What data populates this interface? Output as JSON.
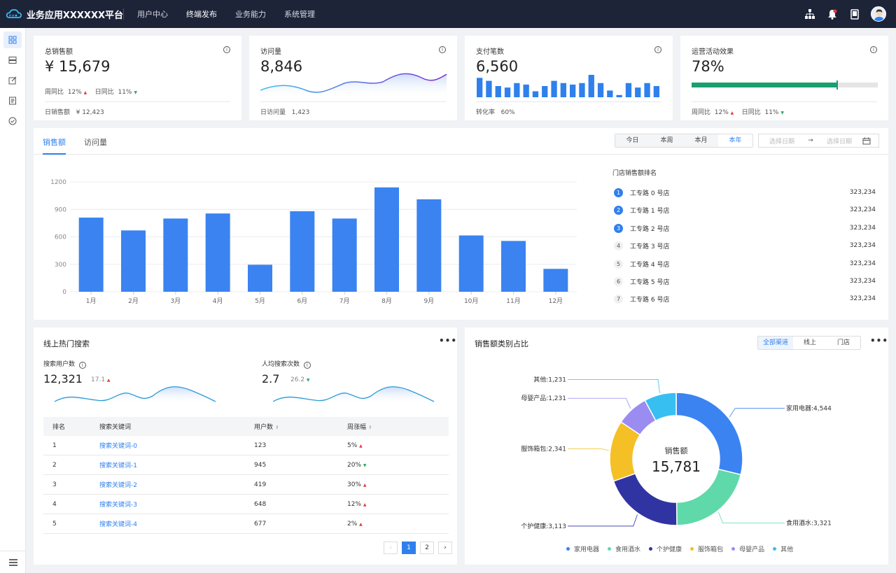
{
  "app": {
    "title": "业务应用XXXXXX平台",
    "nav": [
      "用户中心",
      "终端发布",
      "业务能力",
      "系统管理"
    ],
    "active_nav": 1
  },
  "colors": {
    "accent": "#2f80ed",
    "green": "#1a9f6f",
    "topbar": "#1d2438",
    "up": "#e23b3b",
    "down": "#2aa864"
  },
  "top_icons": [
    "org-chart-icon",
    "bell-icon",
    "tablet-icon",
    "avatar"
  ],
  "sidebar": [
    "dashboard-icon",
    "list-icon",
    "edit-icon",
    "document-icon",
    "check-circle-icon",
    "menu-icon"
  ],
  "kpis": {
    "sales": {
      "title": "总销售额",
      "value": "¥ 15,679",
      "wow_label": "周同比",
      "wow": "12%",
      "dod_label": "日同比",
      "dod": "11%",
      "footer_label": "日销售额",
      "footer_value": "¥ 12,423"
    },
    "visits": {
      "title": "访问量",
      "value": "8,846",
      "footer_label": "日访问量",
      "footer_value": "1,423"
    },
    "payments": {
      "title": "支付笔数",
      "value": "6,560",
      "footer_label": "转化率",
      "footer_value": "60%",
      "bars": [
        26,
        22,
        15,
        13,
        19,
        17,
        8,
        15,
        22,
        19,
        17,
        19,
        30,
        19,
        9,
        3,
        19,
        13,
        19,
        15
      ]
    },
    "campaign": {
      "title": "运营活动效果",
      "value": "78%",
      "progress": 0.78,
      "wow_label": "周同比",
      "wow": "12%",
      "dod_label": "日同比",
      "dod": "11%"
    }
  },
  "sales_section": {
    "tabs": [
      "销售额",
      "访问量"
    ],
    "periods": [
      "今日",
      "本周",
      "本月",
      "本年"
    ],
    "active_period": 3,
    "date_start_placeholder": "选择日期",
    "date_end_placeholder": "选择日期",
    "arrow": "→",
    "rank_title": "门店销售额排名",
    "ranking": [
      {
        "rank": "1",
        "name": "工专路 0 号店",
        "value": "323,234"
      },
      {
        "rank": "2",
        "name": "工专路 1 号店",
        "value": "323,234"
      },
      {
        "rank": "3",
        "name": "工专路 2 号店",
        "value": "323,234"
      },
      {
        "rank": "4",
        "name": "工专路 3 号店",
        "value": "323,234"
      },
      {
        "rank": "5",
        "name": "工专路 4 号店",
        "value": "323,234"
      },
      {
        "rank": "6",
        "name": "工专路 5 号店",
        "value": "323,234"
      },
      {
        "rank": "7",
        "name": "工专路 6 号店",
        "value": "323,234"
      }
    ]
  },
  "chart_data": [
    {
      "type": "bar",
      "categories": [
        "1月",
        "2月",
        "3月",
        "4月",
        "5月",
        "6月",
        "7月",
        "8月",
        "9月",
        "10月",
        "11月",
        "12月"
      ],
      "values": [
        810,
        670,
        800,
        855,
        295,
        880,
        800,
        1140,
        1010,
        615,
        555,
        250
      ],
      "yticks": [
        0,
        300,
        600,
        900,
        1200
      ],
      "ylim": [
        0,
        1200
      ],
      "color": "#3a83f1",
      "grid": true
    },
    {
      "type": "pie",
      "center_label": "销售额",
      "center_value": "15,781",
      "slices": [
        {
          "name": "家用电器",
          "value": 4544,
          "color": "#3a83f1"
        },
        {
          "name": "食用酒水",
          "value": 3321,
          "color": "#5fd9a9"
        },
        {
          "name": "个护健康",
          "value": 3113,
          "color": "#3034a3"
        },
        {
          "name": "服饰箱包",
          "value": 2341,
          "color": "#f4c025"
        },
        {
          "name": "母婴产品",
          "value": 1231,
          "color": "#9b8cf1"
        },
        {
          "name": "其他",
          "value": 1231,
          "color": "#38bff2"
        }
      ],
      "slice_labels": [
        "家用电器:4,544",
        "食用酒水:3,321",
        "个护健康:3,113",
        "服饰箱包:2,341",
        "母婴产品:1,231",
        "其他:1,231"
      ]
    }
  ],
  "hot_search": {
    "title": "线上热门搜索",
    "more": "•••",
    "users_label": "搜索用户数",
    "users_value": "12,321",
    "users_change": "17.1",
    "per_user_label": "人均搜索次数",
    "per_user_value": "2.7",
    "per_user_change": "26.2",
    "columns": [
      "排名",
      "搜索关键词",
      "用户数",
      "周涨幅"
    ],
    "rows": [
      {
        "rank": "1",
        "keyword": "搜索关键词-0",
        "users": "123",
        "change": "5%",
        "dir": "up"
      },
      {
        "rank": "2",
        "keyword": "搜索关键词-1",
        "users": "945",
        "change": "20%",
        "dir": "down"
      },
      {
        "rank": "3",
        "keyword": "搜索关键词-2",
        "users": "419",
        "change": "30%",
        "dir": "up"
      },
      {
        "rank": "4",
        "keyword": "搜索关键词-3",
        "users": "648",
        "change": "12%",
        "dir": "up"
      },
      {
        "rank": "5",
        "keyword": "搜索关键词-4",
        "users": "677",
        "change": "2%",
        "dir": "up"
      }
    ],
    "pages": [
      "‹",
      "1",
      "2",
      "›"
    ]
  },
  "category_section": {
    "title": "销售额类别占比",
    "more": "•••",
    "channels": [
      "全部渠道",
      "线上",
      "门店"
    ],
    "active_channel": 0
  }
}
